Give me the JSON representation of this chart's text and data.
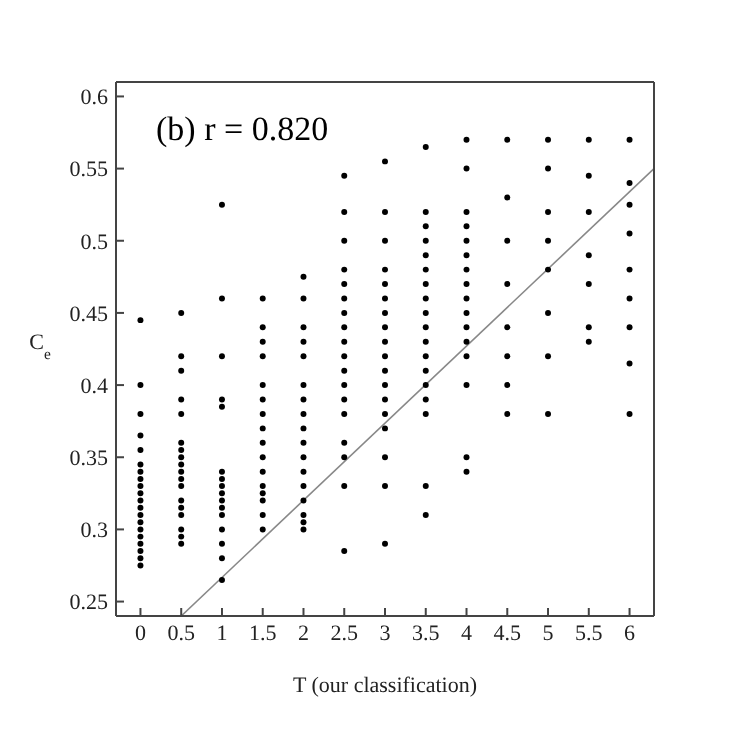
{
  "chart_data": {
    "type": "scatter",
    "xlabel": "T (our classification)",
    "ylabel": "C$_{e}$",
    "annotations": [
      "(b) r = 0.820"
    ],
    "xlim": [
      -0.3,
      6.3
    ],
    "ylim": [
      0.24,
      0.61
    ],
    "xticks": [
      0,
      0.5,
      1,
      1.5,
      2,
      2.5,
      3,
      3.5,
      4,
      4.5,
      5,
      5.5,
      6
    ],
    "yticks": [
      0.25,
      0.3,
      0.35,
      0.4,
      0.45,
      0.5,
      0.55,
      0.6
    ],
    "grid": false,
    "legend": false,
    "marker": "circle",
    "series": [
      {
        "color": "#000000",
        "x": [
          0,
          0,
          0,
          0,
          0,
          0,
          0,
          0,
          0,
          0,
          0,
          0,
          0,
          0,
          0,
          0,
          0,
          0,
          0,
          0,
          0.5,
          0.5,
          0.5,
          0.5,
          0.5,
          0.5,
          0.5,
          0.5,
          0.5,
          0.5,
          0.5,
          0.5,
          0.5,
          0.5,
          0.5,
          0.5,
          0.5,
          0.5,
          1,
          1,
          1,
          1,
          1,
          1,
          1,
          1,
          1,
          1,
          1,
          1,
          1,
          1,
          1,
          1,
          1.5,
          1.5,
          1.5,
          1.5,
          1.5,
          1.5,
          1.5,
          1.5,
          1.5,
          1.5,
          1.5,
          1.5,
          1.5,
          1.5,
          1.5,
          1.5,
          2,
          2,
          2,
          2,
          2,
          2,
          2,
          2,
          2,
          2,
          2,
          2,
          2,
          2,
          2,
          2,
          2,
          2.5,
          2.5,
          2.5,
          2.5,
          2.5,
          2.5,
          2.5,
          2.5,
          2.5,
          2.5,
          2.5,
          2.5,
          2.5,
          2.5,
          2.5,
          2.5,
          2.5,
          2.5,
          3,
          3,
          3,
          3,
          3,
          3,
          3,
          3,
          3,
          3,
          3,
          3,
          3,
          3,
          3,
          3,
          3,
          3,
          3.5,
          3.5,
          3.5,
          3.5,
          3.5,
          3.5,
          3.5,
          3.5,
          3.5,
          3.5,
          3.5,
          3.5,
          3.5,
          3.5,
          3.5,
          3.5,
          3.5,
          3.5,
          4,
          4,
          4,
          4,
          4,
          4,
          4,
          4,
          4,
          4,
          4,
          4,
          4,
          4,
          4,
          4,
          4.5,
          4.5,
          4.5,
          4.5,
          4.5,
          4.5,
          4.5,
          4.5,
          5,
          5,
          5,
          5,
          5,
          5,
          5,
          5,
          5.5,
          5.5,
          5.5,
          5.5,
          5.5,
          5.5,
          5.5,
          6,
          6,
          6,
          6,
          6,
          6,
          6,
          6,
          6
        ],
        "values": [
          0.445,
          0.4,
          0.38,
          0.365,
          0.355,
          0.345,
          0.34,
          0.335,
          0.33,
          0.325,
          0.32,
          0.315,
          0.31,
          0.305,
          0.3,
          0.295,
          0.29,
          0.285,
          0.28,
          0.275,
          0.45,
          0.42,
          0.41,
          0.39,
          0.38,
          0.36,
          0.355,
          0.35,
          0.345,
          0.34,
          0.335,
          0.33,
          0.32,
          0.315,
          0.31,
          0.3,
          0.295,
          0.29,
          0.525,
          0.46,
          0.42,
          0.39,
          0.385,
          0.34,
          0.335,
          0.33,
          0.325,
          0.32,
          0.315,
          0.31,
          0.3,
          0.29,
          0.28,
          0.265,
          0.46,
          0.44,
          0.43,
          0.42,
          0.4,
          0.39,
          0.38,
          0.37,
          0.36,
          0.35,
          0.34,
          0.33,
          0.325,
          0.32,
          0.31,
          0.3,
          0.475,
          0.46,
          0.44,
          0.43,
          0.42,
          0.4,
          0.39,
          0.38,
          0.37,
          0.36,
          0.35,
          0.34,
          0.33,
          0.32,
          0.31,
          0.305,
          0.3,
          0.545,
          0.52,
          0.5,
          0.48,
          0.47,
          0.46,
          0.45,
          0.44,
          0.43,
          0.42,
          0.41,
          0.4,
          0.39,
          0.38,
          0.36,
          0.35,
          0.33,
          0.285,
          0.555,
          0.52,
          0.5,
          0.48,
          0.47,
          0.46,
          0.45,
          0.44,
          0.43,
          0.42,
          0.41,
          0.4,
          0.39,
          0.38,
          0.37,
          0.35,
          0.33,
          0.29,
          0.565,
          0.52,
          0.51,
          0.5,
          0.49,
          0.48,
          0.47,
          0.46,
          0.45,
          0.44,
          0.43,
          0.42,
          0.41,
          0.4,
          0.39,
          0.38,
          0.33,
          0.31,
          0.57,
          0.55,
          0.52,
          0.51,
          0.5,
          0.49,
          0.48,
          0.47,
          0.46,
          0.45,
          0.44,
          0.43,
          0.42,
          0.4,
          0.35,
          0.34,
          0.57,
          0.53,
          0.5,
          0.47,
          0.44,
          0.42,
          0.4,
          0.38,
          0.57,
          0.55,
          0.52,
          0.5,
          0.48,
          0.45,
          0.42,
          0.38,
          0.57,
          0.545,
          0.52,
          0.49,
          0.47,
          0.44,
          0.43,
          0.57,
          0.54,
          0.525,
          0.505,
          0.48,
          0.46,
          0.44,
          0.415,
          0.38
        ]
      },
      {
        "type": "line",
        "color": "#888888",
        "marker": "none",
        "x": [
          0.5,
          6.3
        ],
        "values": [
          0.24,
          0.55
        ]
      }
    ]
  }
}
